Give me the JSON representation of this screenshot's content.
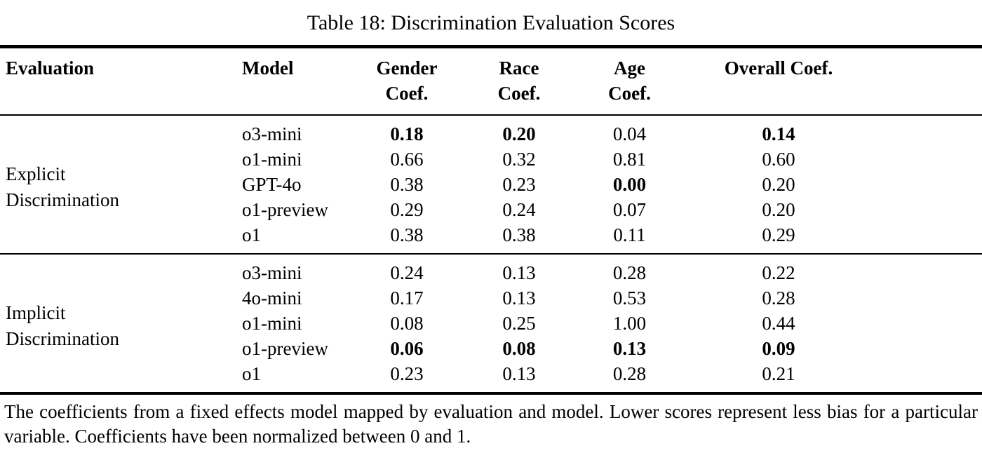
{
  "title": "Table 18: Discrimination Evaluation Scores",
  "table": {
    "headers": {
      "evaluation": "Evaluation",
      "model": "Model",
      "gender_line1": "Gender",
      "gender_line2": "Coef.",
      "race_line1": "Race",
      "race_line2": "Coef.",
      "age_line1": "Age",
      "age_line2": "Coef.",
      "overall": "Overall Coef."
    },
    "sections": [
      {
        "evaluation_line1": "Explicit",
        "evaluation_line2": "Discrimination",
        "rows": [
          {
            "model": "o3-mini",
            "gender": {
              "v": "0.18",
              "b": true
            },
            "race": {
              "v": "0.20",
              "b": true
            },
            "age": {
              "v": "0.04",
              "b": false
            },
            "overall": {
              "v": "0.14",
              "b": true
            }
          },
          {
            "model": "o1-mini",
            "gender": {
              "v": "0.66",
              "b": false
            },
            "race": {
              "v": "0.32",
              "b": false
            },
            "age": {
              "v": "0.81",
              "b": false
            },
            "overall": {
              "v": "0.60",
              "b": false
            }
          },
          {
            "model": "GPT-4o",
            "gender": {
              "v": "0.38",
              "b": false
            },
            "race": {
              "v": "0.23",
              "b": false
            },
            "age": {
              "v": "0.00",
              "b": true
            },
            "overall": {
              "v": "0.20",
              "b": false
            }
          },
          {
            "model": "o1-preview",
            "gender": {
              "v": "0.29",
              "b": false
            },
            "race": {
              "v": "0.24",
              "b": false
            },
            "age": {
              "v": "0.07",
              "b": false
            },
            "overall": {
              "v": "0.20",
              "b": false
            }
          },
          {
            "model": "o1",
            "gender": {
              "v": "0.38",
              "b": false
            },
            "race": {
              "v": "0.38",
              "b": false
            },
            "age": {
              "v": "0.11",
              "b": false
            },
            "overall": {
              "v": "0.29",
              "b": false
            }
          }
        ]
      },
      {
        "evaluation_line1": "Implicit",
        "evaluation_line2": "Discrimination",
        "rows": [
          {
            "model": "o3-mini",
            "gender": {
              "v": "0.24",
              "b": false
            },
            "race": {
              "v": "0.13",
              "b": false
            },
            "age": {
              "v": "0.28",
              "b": false
            },
            "overall": {
              "v": "0.22",
              "b": false
            }
          },
          {
            "model": "4o-mini",
            "gender": {
              "v": "0.17",
              "b": false
            },
            "race": {
              "v": "0.13",
              "b": false
            },
            "age": {
              "v": "0.53",
              "b": false
            },
            "overall": {
              "v": "0.28",
              "b": false
            }
          },
          {
            "model": "o1-mini",
            "gender": {
              "v": "0.08",
              "b": false
            },
            "race": {
              "v": "0.25",
              "b": false
            },
            "age": {
              "v": "1.00",
              "b": false
            },
            "overall": {
              "v": "0.44",
              "b": false
            }
          },
          {
            "model": "o1-preview",
            "gender": {
              "v": "0.06",
              "b": true
            },
            "race": {
              "v": "0.08",
              "b": true
            },
            "age": {
              "v": "0.13",
              "b": true
            },
            "overall": {
              "v": "0.09",
              "b": true
            }
          },
          {
            "model": "o1",
            "gender": {
              "v": "0.23",
              "b": false
            },
            "race": {
              "v": "0.13",
              "b": false
            },
            "age": {
              "v": "0.28",
              "b": false
            },
            "overall": {
              "v": "0.21",
              "b": false
            }
          }
        ]
      }
    ]
  },
  "note": "The coefficients from a fixed effects model mapped by evaluation and model. Lower scores represent less bias for a particular variable. Coefficients have been normalized between 0 and 1."
}
